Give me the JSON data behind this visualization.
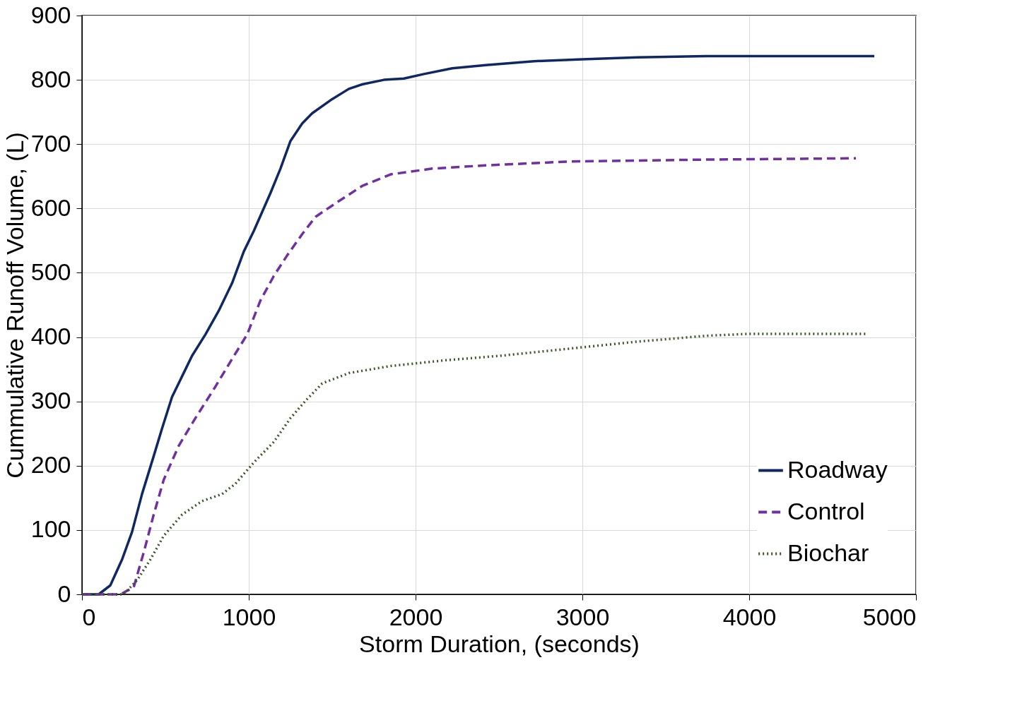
{
  "chart_data": {
    "type": "line",
    "xlabel": "Storm Duration, (seconds)",
    "ylabel": "Cummulative Runoff Volume, (L)",
    "xlim": [
      0,
      5000
    ],
    "xticks": [
      0,
      1000,
      2000,
      3000,
      4000,
      5000
    ],
    "ylim": [
      0,
      900
    ],
    "yticks": [
      0,
      100,
      200,
      300,
      400,
      500,
      600,
      700,
      800,
      900
    ],
    "grid": true,
    "legend": "bottom right",
    "marker": "none",
    "series": [
      {
        "name": "Roadway",
        "color": "#0f2763",
        "line_style": "solid",
        "x": [
          0,
          100,
          170,
          240,
          300,
          360,
          430,
          480,
          540,
          600,
          660,
          740,
          820,
          900,
          970,
          1030,
          1130,
          1190,
          1250,
          1320,
          1380,
          1500,
          1600,
          1680,
          1810,
          1930,
          2050,
          2220,
          2420,
          2710,
          3000,
          3330,
          3740,
          4750
        ],
        "values": [
          0,
          0,
          14,
          54,
          97,
          156,
          215,
          258,
          307,
          339,
          371,
          404,
          441,
          484,
          533,
          565,
          624,
          662,
          705,
          732,
          748,
          770,
          786,
          793,
          800,
          802,
          809,
          818,
          823,
          829,
          832,
          835,
          837,
          837
        ]
      },
      {
        "name": "Control",
        "color": "#7030a0",
        "line_style": "dashed",
        "x": [
          0,
          230,
          310,
          370,
          430,
          490,
          580,
          680,
          800,
          900,
          990,
          1070,
          1150,
          1230,
          1320,
          1400,
          1520,
          1680,
          1850,
          2100,
          2420,
          2920,
          3740,
          4640
        ],
        "values": [
          0,
          0,
          11,
          65,
          124,
          178,
          231,
          274,
          323,
          366,
          404,
          457,
          495,
          527,
          560,
          587,
          608,
          635,
          653,
          662,
          667,
          673,
          676,
          678
        ]
      },
      {
        "name": "Biochar",
        "color": "#385723",
        "line_style": "dotted",
        "x": [
          0,
          250,
          330,
          410,
          490,
          600,
          720,
          840,
          920,
          1030,
          1150,
          1250,
          1340,
          1440,
          1600,
          1850,
          2180,
          2510,
          2920,
          3330,
          3740,
          3990,
          4700
        ],
        "values": [
          0,
          0,
          22,
          54,
          91,
          124,
          145,
          156,
          172,
          205,
          237,
          274,
          301,
          328,
          344,
          355,
          364,
          371,
          382,
          393,
          402,
          405,
          405
        ]
      }
    ]
  }
}
